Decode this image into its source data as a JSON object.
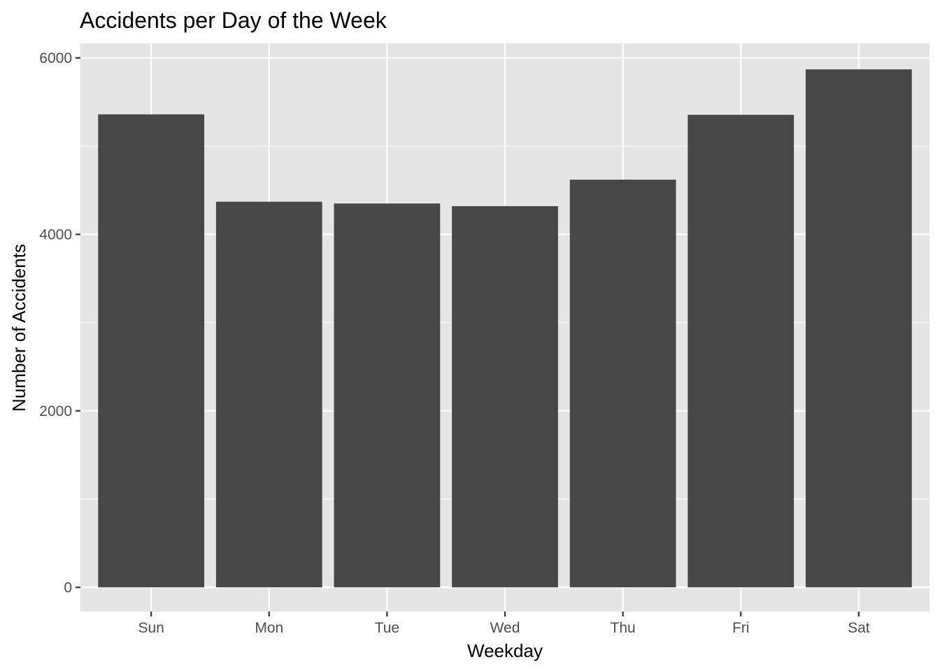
{
  "chart_data": {
    "type": "bar",
    "title": "Accidents per Day of the Week",
    "xlabel": "Weekday",
    "ylabel": "Number of Accidents",
    "categories": [
      "Sun",
      "Mon",
      "Tue",
      "Wed",
      "Thu",
      "Fri",
      "Sat"
    ],
    "values": [
      5360,
      4370,
      4350,
      4320,
      4620,
      5355,
      5870
    ],
    "ylim": [
      -275,
      6165
    ],
    "yticks": [
      0,
      2000,
      4000,
      6000
    ],
    "ytick_labels": [
      "0",
      "2000",
      "4000",
      "6000"
    ],
    "grid": true,
    "legend": "none"
  },
  "colors": {
    "panel_background": "#e5e5e5",
    "grid_line": "#ffffff",
    "bar_fill": "#474747",
    "tick_mark": "#333333",
    "tick_label": "#4d4d4d",
    "text": "#000000"
  }
}
